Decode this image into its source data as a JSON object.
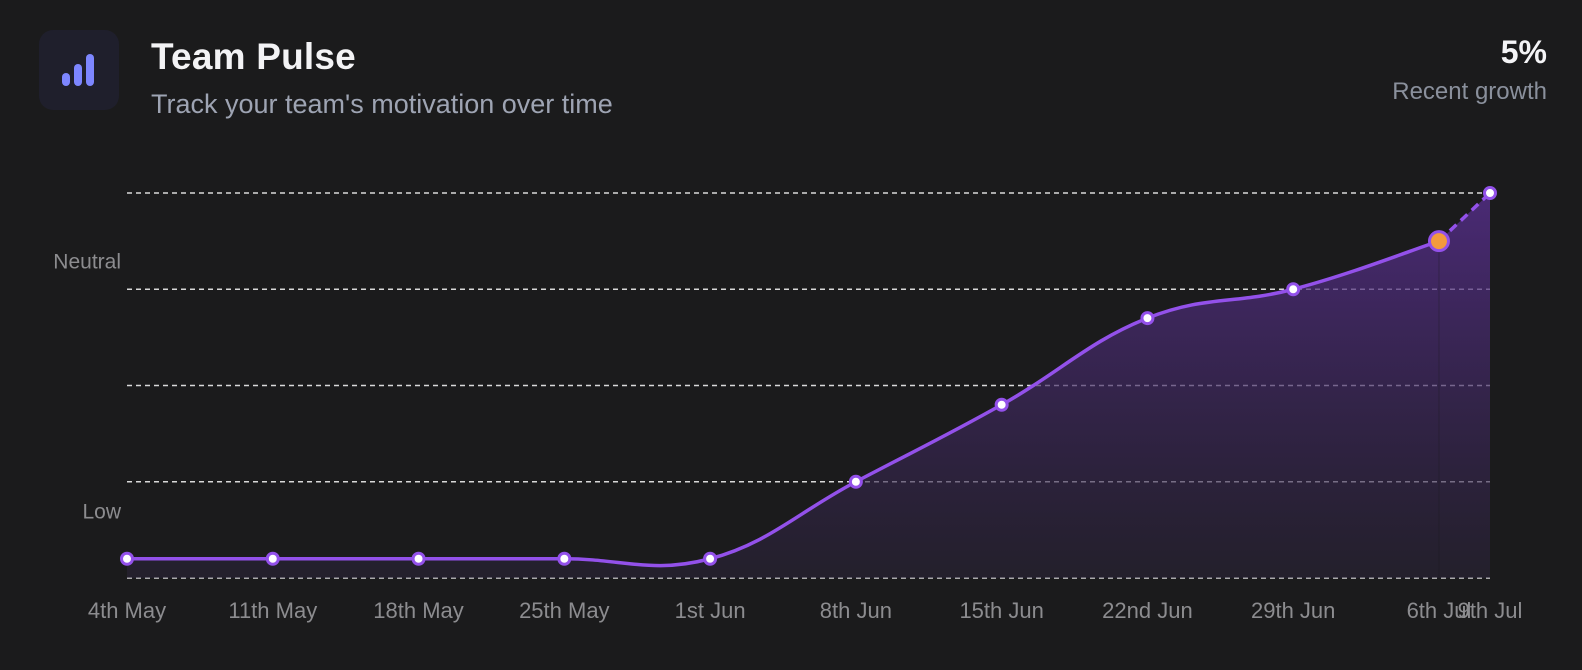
{
  "header": {
    "title": "Team Pulse",
    "subtitle": "Track your team's motivation over time",
    "icon": "bar-chart-icon"
  },
  "metric": {
    "value": "5%",
    "label": "Recent growth"
  },
  "colors": {
    "background": "#1b1b1c",
    "line": "#9351ea",
    "highlight": "#f39a3e",
    "grid": "#d9d9d9",
    "icon": "#7d86ff"
  },
  "chart_data": {
    "type": "area",
    "x": [
      "4th May",
      "11th May",
      "18th May",
      "25th May",
      "1st Jun",
      "8th Jun",
      "15th Jun",
      "22nd Jun",
      "29th Jun",
      "6th Jul",
      "9th Jul"
    ],
    "values": [
      0.2,
      0.2,
      0.2,
      0.2,
      0.2,
      1.0,
      1.8,
      2.7,
      3.0,
      3.5,
      4.0
    ],
    "ylim": [
      0,
      4
    ],
    "y_ticks": [
      {
        "label": "Low",
        "value": 0.7
      },
      {
        "label": "Neutral",
        "value": 3.3
      }
    ],
    "gridlines": [
      0,
      1,
      2,
      3,
      4
    ],
    "highlight_index": 9,
    "projected_from_index": 9,
    "grid": true,
    "xlabel": "",
    "ylabel": ""
  }
}
